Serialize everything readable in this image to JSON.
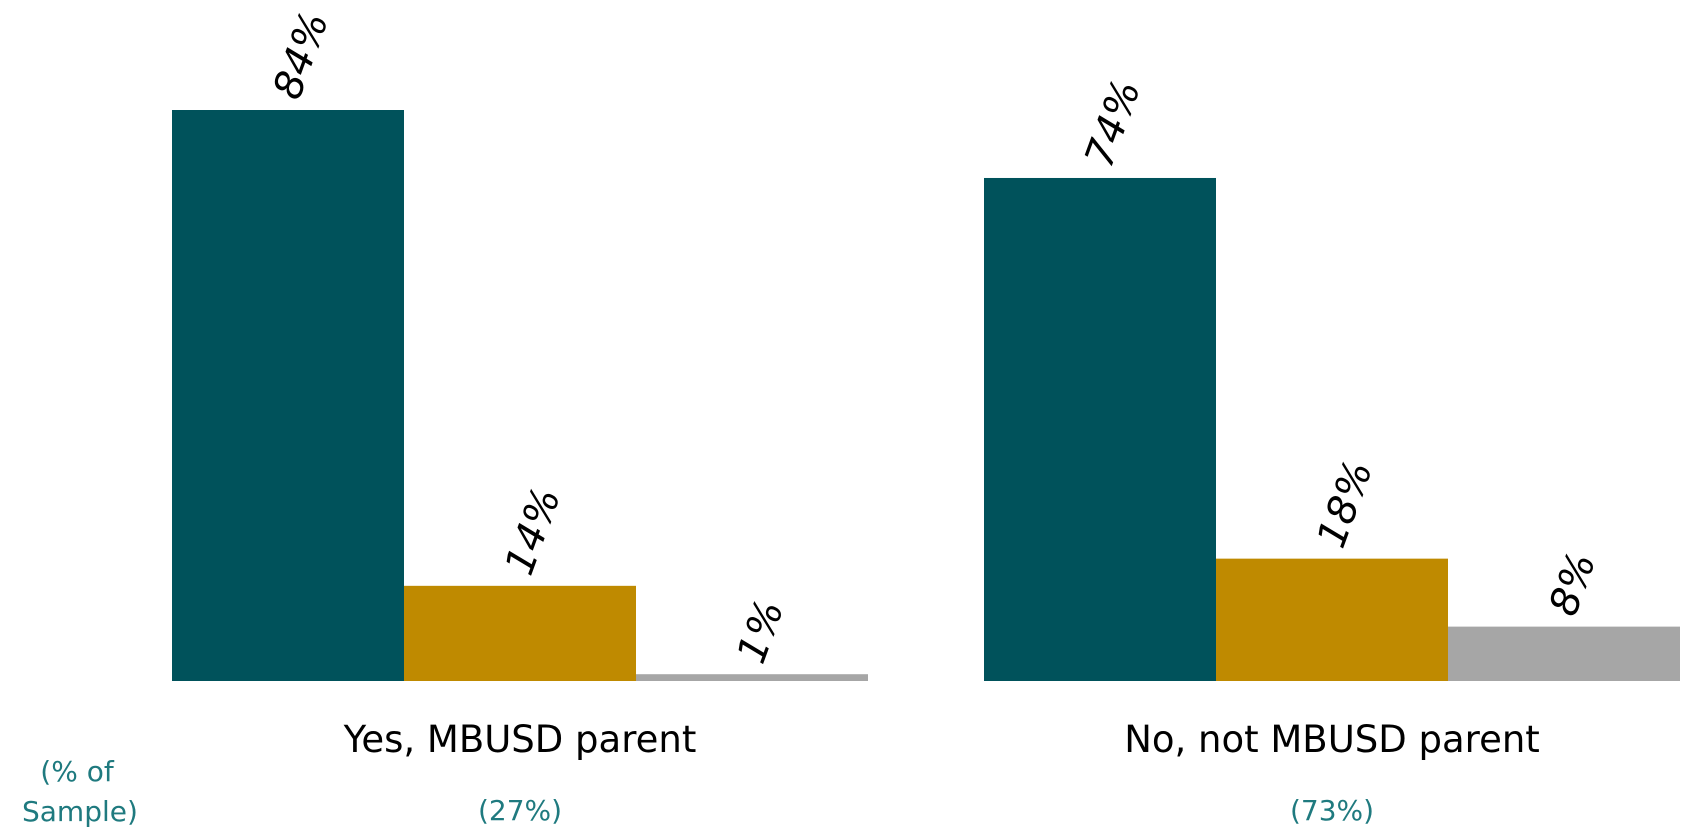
{
  "chart_data": {
    "type": "bar",
    "categories": [
      "Yes, MBUSD parent",
      "No, not MBUSD parent"
    ],
    "category_subtitles": [
      "(27%)",
      "(73%)"
    ],
    "sample_note": "(% of Sample)",
    "series": [
      {
        "values": [
          84,
          74
        ],
        "labels": [
          "84%",
          "74%"
        ],
        "color": "#00525b"
      },
      {
        "values": [
          14,
          18
        ],
        "labels": [
          "14%",
          "18%"
        ],
        "color": "#bf8a00"
      },
      {
        "values": [
          1,
          8
        ],
        "labels": [
          "1%",
          "8%"
        ],
        "color": "#a6a6a6"
      }
    ],
    "ylim": [
      0,
      84
    ],
    "grid": false,
    "legend": false,
    "colors": {
      "subtitle": "#1f7a7f",
      "label": "#000000"
    }
  }
}
